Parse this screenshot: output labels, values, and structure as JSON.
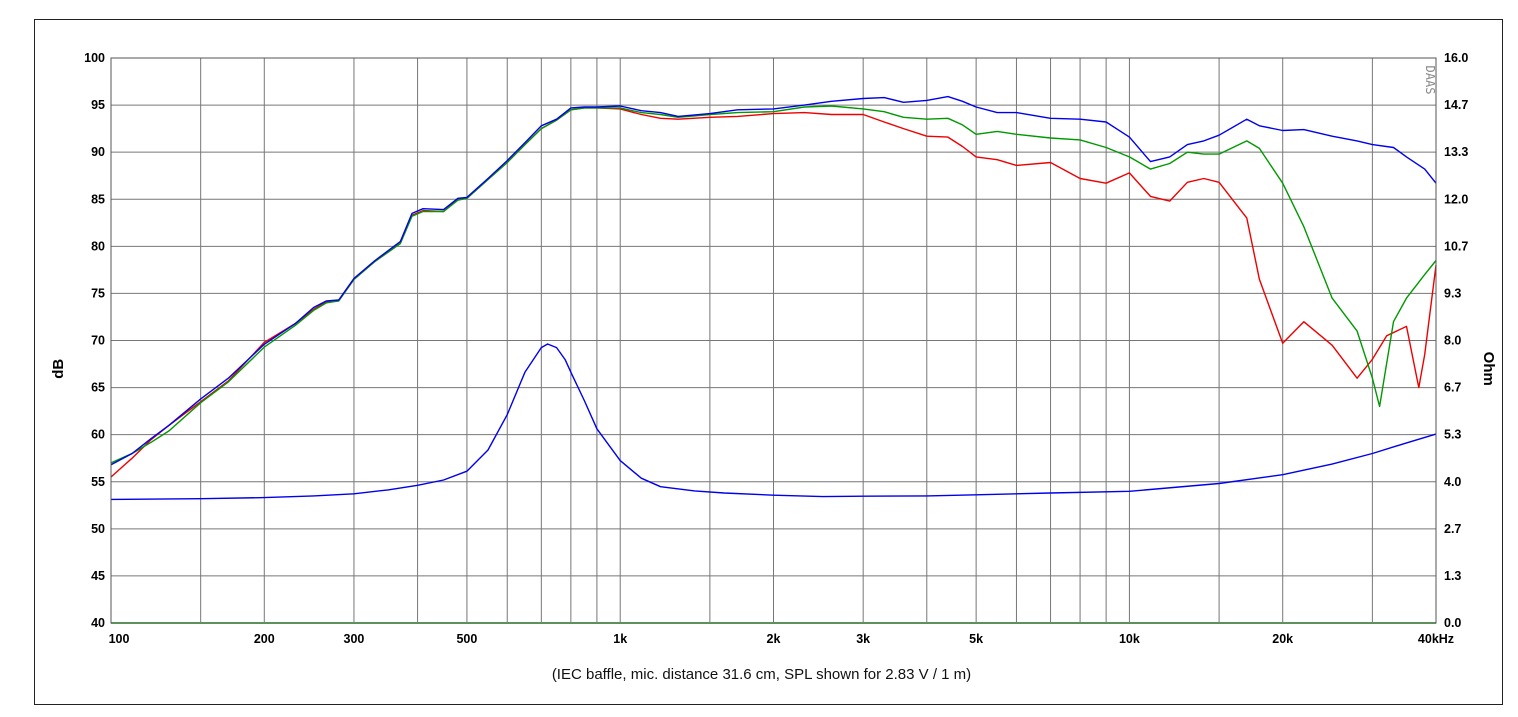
{
  "chart_data": {
    "type": "line",
    "caption": "(IEC baffle, mic. distance 31.6 cm, SPL shown for 2.83 V / 1 m)",
    "watermark": "DAAS",
    "x_scale": "log",
    "xlim": [
      100,
      40000
    ],
    "x_ticks": [
      {
        "value": 100,
        "label": "100"
      },
      {
        "value": 200,
        "label": "200"
      },
      {
        "value": 300,
        "label": "300"
      },
      {
        "value": 500,
        "label": "500"
      },
      {
        "value": 1000,
        "label": "1k"
      },
      {
        "value": 2000,
        "label": "2k"
      },
      {
        "value": 3000,
        "label": "3k"
      },
      {
        "value": 5000,
        "label": "5k"
      },
      {
        "value": 10000,
        "label": "10k"
      },
      {
        "value": 20000,
        "label": "20k"
      },
      {
        "value": 40000,
        "label": "40kHz"
      }
    ],
    "x_gridlines": [
      100,
      150,
      200,
      300,
      400,
      500,
      600,
      700,
      800,
      900,
      1000,
      1500,
      2000,
      3000,
      4000,
      5000,
      6000,
      7000,
      8000,
      9000,
      10000,
      15000,
      20000,
      30000,
      40000
    ],
    "ylabel": "dB",
    "ylim": [
      40,
      100
    ],
    "y_ticks": [
      "40",
      "45",
      "50",
      "55",
      "60",
      "65",
      "70",
      "75",
      "80",
      "85",
      "90",
      "95",
      "100"
    ],
    "y2label": "Ohm",
    "y2lim": [
      0,
      16
    ],
    "y2_ticks": [
      "0.0",
      "1.3",
      "2.7",
      "4.0",
      "5.3",
      "6.7",
      "8.0",
      "9.3",
      "10.7",
      "12.0",
      "13.3",
      "14.7",
      "16.0"
    ],
    "grid": true,
    "colors": {
      "on_axis": "#0000ee",
      "green": "#009900",
      "red": "#ee0000",
      "impedance": "#0000ee",
      "grid": "#777777"
    },
    "series": [
      {
        "key": "blue",
        "axis": "left",
        "x": [
          100,
          110,
          120,
          130,
          150,
          170,
          200,
          230,
          250,
          265,
          280,
          300,
          330,
          370,
          390,
          410,
          450,
          480,
          500,
          550,
          600,
          650,
          700,
          750,
          800,
          850,
          900,
          1000,
          1100,
          1200,
          1300,
          1500,
          1700,
          2000,
          2300,
          2600,
          3000,
          3300,
          3600,
          4000,
          4400,
          4700,
          5000,
          5500,
          6000,
          7000,
          8000,
          9000,
          10000,
          11000,
          12000,
          13000,
          14000,
          15000,
          17000,
          18000,
          20000,
          22000,
          25000,
          28000,
          30000,
          33000,
          35000,
          38000,
          40000
        ],
        "y": [
          56.8,
          58,
          59.6,
          61,
          63.8,
          66,
          69.6,
          71.8,
          73.5,
          74.2,
          74.3,
          76.6,
          78.5,
          80.5,
          83.5,
          84,
          83.9,
          85.1,
          85.2,
          87.2,
          89.1,
          91,
          92.8,
          93.5,
          94.7,
          94.8,
          94.8,
          94.9,
          94.4,
          94.2,
          93.8,
          94.1,
          94.5,
          94.6,
          95,
          95.4,
          95.7,
          95.8,
          95.3,
          95.5,
          95.9,
          95.4,
          94.8,
          94.2,
          94.2,
          93.6,
          93.5,
          93.2,
          91.6,
          89,
          89.5,
          90.8,
          91.2,
          91.8,
          93.5,
          92.8,
          92.3,
          92.4,
          91.7,
          91.2,
          90.8,
          90.5,
          89.5,
          88.2,
          86.7
        ]
      },
      {
        "key": "green",
        "axis": "left",
        "x": [
          100,
          110,
          120,
          130,
          150,
          170,
          200,
          230,
          250,
          265,
          280,
          300,
          330,
          370,
          390,
          410,
          450,
          480,
          500,
          550,
          600,
          650,
          700,
          750,
          800,
          850,
          900,
          1000,
          1100,
          1200,
          1300,
          1500,
          1700,
          2000,
          2300,
          2600,
          3000,
          3300,
          3600,
          4000,
          4400,
          4700,
          5000,
          5500,
          6000,
          7000,
          8000,
          9000,
          10000,
          11000,
          12000,
          13000,
          14000,
          15000,
          17000,
          18000,
          20000,
          22000,
          25000,
          28000,
          30000,
          31000,
          33000,
          35000,
          38000,
          40000
        ],
        "y": [
          57,
          58,
          59.2,
          60.4,
          63.4,
          65.6,
          69.3,
          71.6,
          73.2,
          74,
          74.2,
          76.5,
          78.4,
          80.3,
          83.2,
          83.7,
          83.7,
          84.9,
          85.1,
          87.1,
          88.9,
          90.8,
          92.5,
          93.4,
          94.5,
          94.7,
          94.7,
          94.7,
          94.2,
          94,
          93.7,
          94,
          94.2,
          94.3,
          94.8,
          94.9,
          94.6,
          94.3,
          93.7,
          93.5,
          93.6,
          92.9,
          91.9,
          92.2,
          91.9,
          91.5,
          91.3,
          90.5,
          89.5,
          88.2,
          88.8,
          90,
          89.8,
          89.8,
          91.2,
          90.4,
          86.7,
          82.1,
          74.5,
          71,
          66,
          63,
          72,
          74.5,
          77,
          78.5
        ]
      },
      {
        "key": "red",
        "axis": "left",
        "x": [
          100,
          110,
          120,
          130,
          150,
          170,
          200,
          230,
          250,
          265,
          280,
          300,
          330,
          370,
          390,
          410,
          450,
          480,
          500,
          550,
          600,
          650,
          700,
          750,
          800,
          850,
          900,
          1000,
          1100,
          1200,
          1300,
          1500,
          1700,
          2000,
          2300,
          2600,
          3000,
          3300,
          3600,
          4000,
          4400,
          4700,
          5000,
          5500,
          6000,
          7000,
          8000,
          9000,
          10000,
          11000,
          12000,
          13000,
          14000,
          15000,
          17000,
          18000,
          20000,
          22000,
          25000,
          28000,
          30000,
          32000,
          35000,
          37000,
          38000,
          40000
        ],
        "y": [
          55.5,
          57.5,
          59.5,
          61,
          63.5,
          65.7,
          69.8,
          71.8,
          73.3,
          74.1,
          74.2,
          76.5,
          78.4,
          80.3,
          83.3,
          83.8,
          83.7,
          85,
          85.1,
          87.1,
          88.9,
          90.8,
          92.5,
          93.4,
          94.5,
          94.7,
          94.7,
          94.6,
          94,
          93.6,
          93.5,
          93.7,
          93.8,
          94.1,
          94.2,
          94,
          94,
          93.2,
          92.5,
          91.7,
          91.6,
          90.6,
          89.5,
          89.2,
          88.6,
          88.9,
          87.2,
          86.7,
          87.8,
          85.3,
          84.8,
          86.8,
          87.2,
          86.8,
          83,
          76.5,
          69.7,
          72,
          69.5,
          66,
          68,
          70.5,
          71.5,
          65,
          68.5,
          78
        ]
      },
      {
        "key": "impedance",
        "axis": "right",
        "x": [
          100,
          150,
          200,
          250,
          300,
          350,
          400,
          450,
          500,
          550,
          600,
          650,
          700,
          720,
          750,
          780,
          800,
          850,
          900,
          1000,
          1100,
          1200,
          1400,
          1600,
          2000,
          2500,
          3000,
          4000,
          5000,
          7000,
          10000,
          15000,
          20000,
          25000,
          30000,
          35000,
          40000
        ],
        "y": [
          3.5,
          3.52,
          3.55,
          3.6,
          3.66,
          3.77,
          3.9,
          4.05,
          4.3,
          4.9,
          5.9,
          7.1,
          7.8,
          7.9,
          7.8,
          7.45,
          7.1,
          6.3,
          5.5,
          4.6,
          4.1,
          3.86,
          3.74,
          3.68,
          3.62,
          3.58,
          3.59,
          3.6,
          3.63,
          3.68,
          3.73,
          3.95,
          4.2,
          4.5,
          4.8,
          5.1,
          5.35
        ]
      }
    ]
  }
}
